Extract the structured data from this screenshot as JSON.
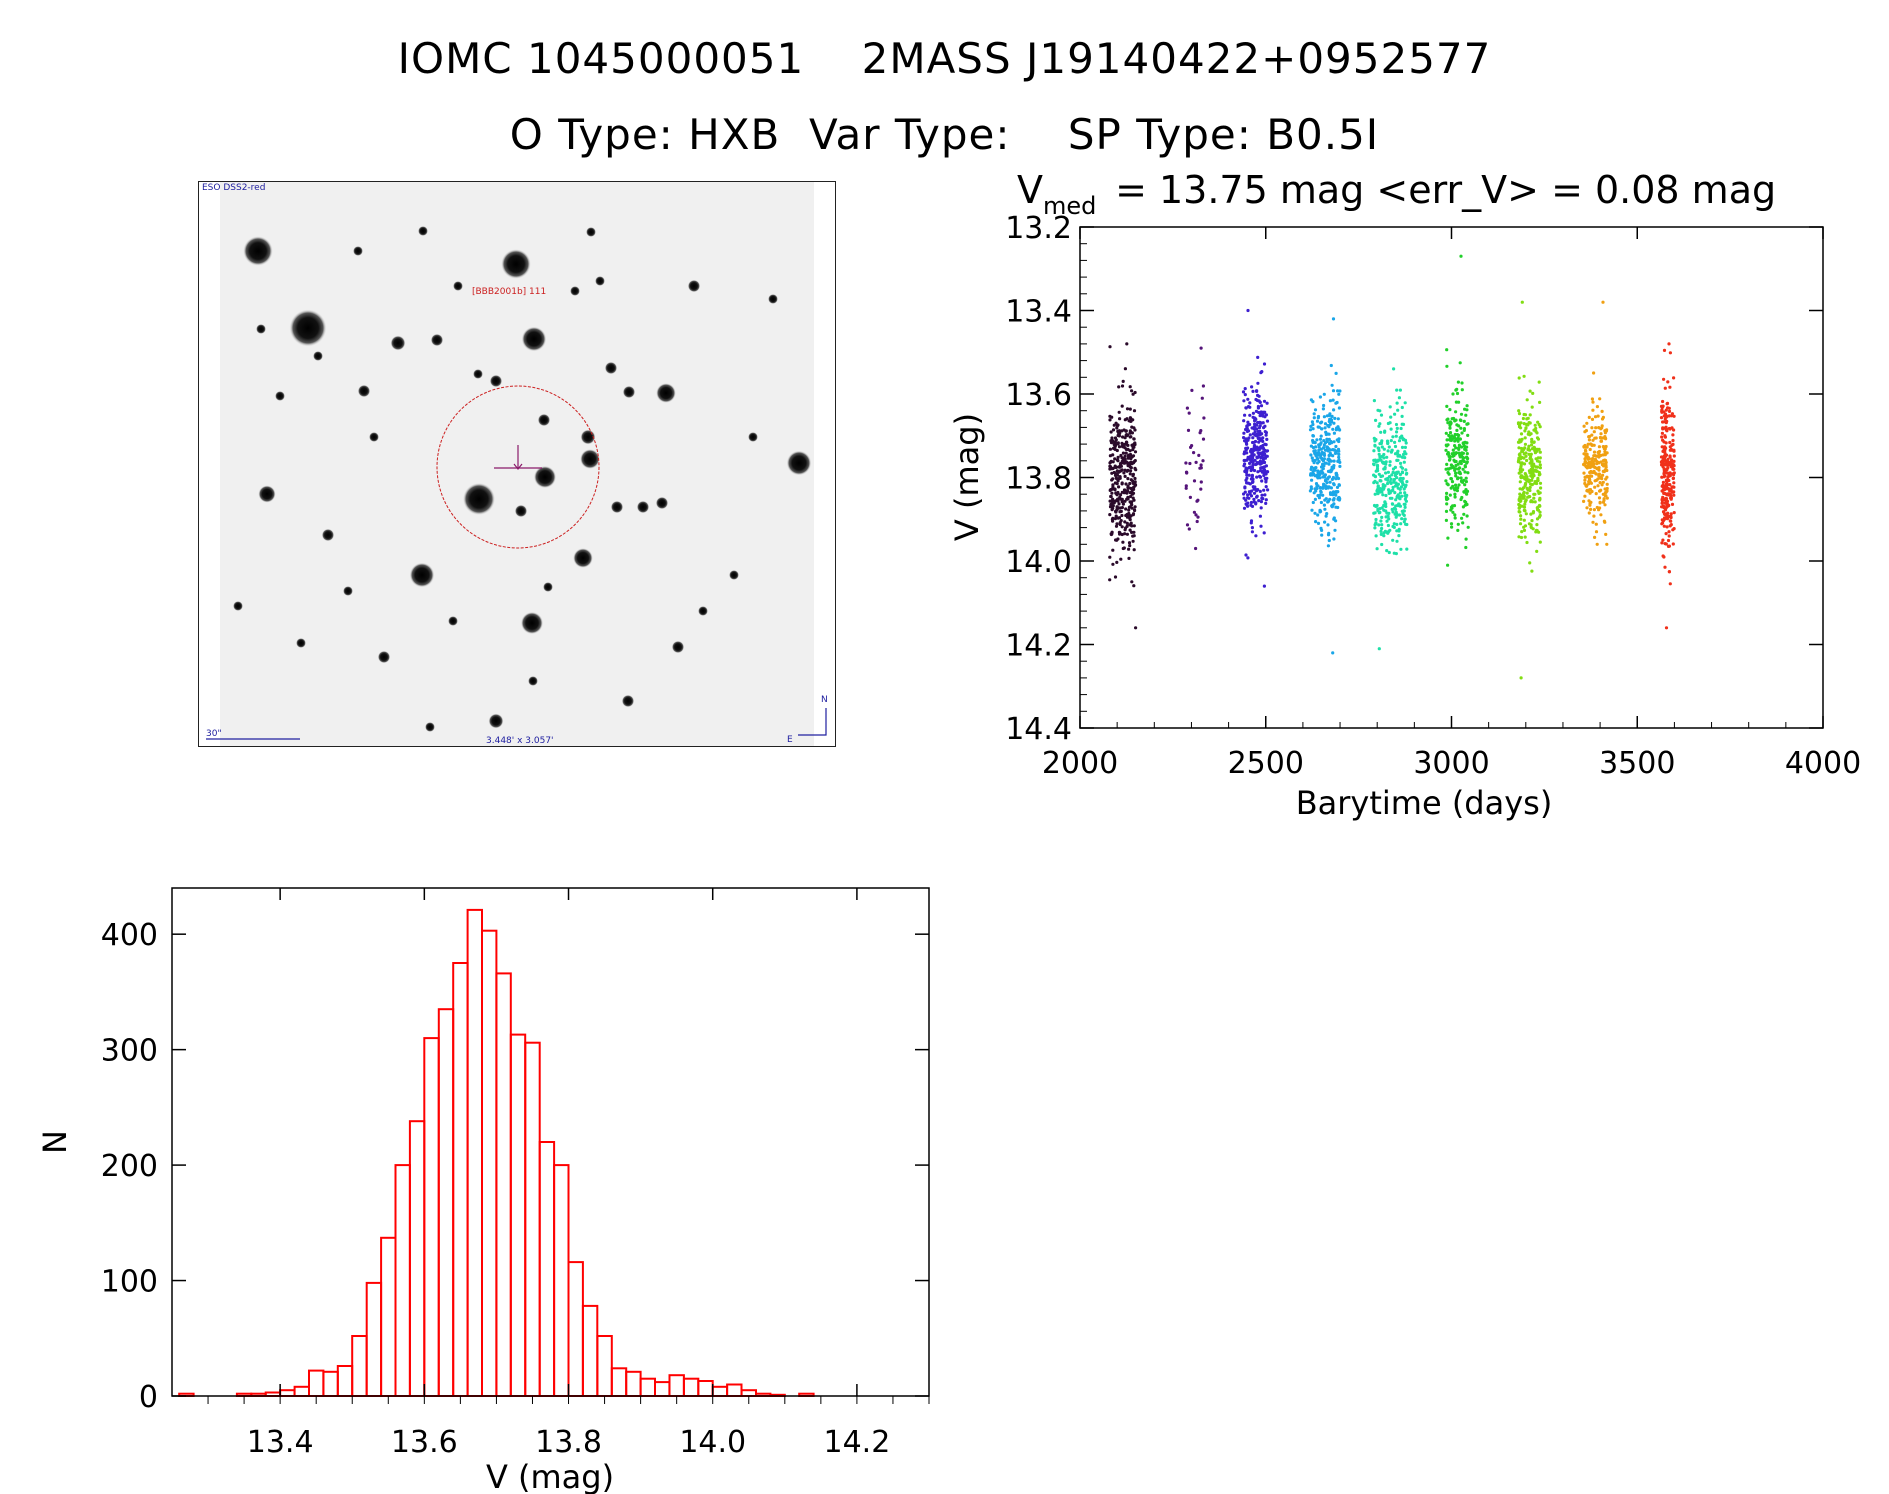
{
  "header": {
    "line1": "IOMC 1045000051    2MASS J19140422+0952577",
    "line2": "O Type: HXB  Var Type:    SP Type: B0.5I"
  },
  "finder": {
    "survey_label": "ESO DSS2-red",
    "target_label": "[BBB2001b] 111",
    "scale_label": "30\"",
    "fov_label": "3.448' x 3.057'",
    "north_label": "N",
    "east_label": "E",
    "circle_color": "#cc2020",
    "text_blue": "#2020a0",
    "icons": [
      "crosshair-icon",
      "compass-icon"
    ]
  },
  "chart_data": [
    {
      "type": "scatter",
      "title_main": "V",
      "title_sub": "med",
      "title_rest": " = 13.75 mag <err_V> = 0.08 mag",
      "xlabel": "Barytime (days)",
      "ylabel": "V (mag)",
      "xlim": [
        2000,
        4000
      ],
      "ylim": [
        14.4,
        13.2
      ],
      "y_inverted": true,
      "xticks": [
        2000,
        2500,
        3000,
        3500,
        4000
      ],
      "yticks": [
        13.2,
        13.4,
        13.6,
        13.8,
        14.0,
        14.2,
        14.4
      ],
      "colormap": "rainbow by time",
      "clusters": [
        {
          "x_start": 2080,
          "x_end": 2150,
          "v_median": 13.8,
          "v_spread": 0.09,
          "v_min": 13.48,
          "v_max": 14.16,
          "color": "#2a0a2a",
          "n": 380
        },
        {
          "x_start": 2285,
          "x_end": 2335,
          "v_median": 13.76,
          "v_spread": 0.07,
          "v_min": 13.49,
          "v_max": 13.97,
          "color": "#55147a",
          "n": 40
        },
        {
          "x_start": 2440,
          "x_end": 2505,
          "v_median": 13.74,
          "v_spread": 0.08,
          "v_min": 13.4,
          "v_max": 14.06,
          "color": "#3d1fd0",
          "n": 330
        },
        {
          "x_start": 2620,
          "x_end": 2700,
          "v_median": 13.76,
          "v_spread": 0.08,
          "v_min": 13.42,
          "v_max": 14.22,
          "color": "#1aa6e8",
          "n": 330
        },
        {
          "x_start": 2790,
          "x_end": 2880,
          "v_median": 13.8,
          "v_spread": 0.08,
          "v_min": 13.54,
          "v_max": 14.21,
          "color": "#1ee0a8",
          "n": 330
        },
        {
          "x_start": 2985,
          "x_end": 3045,
          "v_median": 13.76,
          "v_spread": 0.08,
          "v_min": 13.27,
          "v_max": 14.01,
          "color": "#22d02a",
          "n": 230
        },
        {
          "x_start": 3180,
          "x_end": 3240,
          "v_median": 13.78,
          "v_spread": 0.09,
          "v_min": 13.38,
          "v_max": 14.28,
          "color": "#82dd12",
          "n": 280
        },
        {
          "x_start": 3355,
          "x_end": 3420,
          "v_median": 13.76,
          "v_spread": 0.07,
          "v_min": 13.38,
          "v_max": 13.96,
          "color": "#f0a012",
          "n": 240
        },
        {
          "x_start": 3565,
          "x_end": 3600,
          "v_median": 13.8,
          "v_spread": 0.09,
          "v_min": 13.48,
          "v_max": 14.16,
          "color": "#f0301a",
          "n": 260
        }
      ]
    },
    {
      "type": "bar",
      "style": "step-histogram",
      "xlabel": "V (mag)",
      "ylabel": "N",
      "xlim": [
        13.25,
        14.3
      ],
      "ylim": [
        0,
        440
      ],
      "xticks": [
        13.4,
        13.6,
        13.8,
        14.0,
        14.2
      ],
      "yticks": [
        0,
        100,
        200,
        300,
        400
      ],
      "bin_width": 0.02,
      "color": "#ff0000",
      "bins": [
        {
          "x0": 13.26,
          "n": 2
        },
        {
          "x0": 13.28,
          "n": 0
        },
        {
          "x0": 13.3,
          "n": 0
        },
        {
          "x0": 13.32,
          "n": 0
        },
        {
          "x0": 13.34,
          "n": 2
        },
        {
          "x0": 13.36,
          "n": 2
        },
        {
          "x0": 13.38,
          "n": 3
        },
        {
          "x0": 13.4,
          "n": 5
        },
        {
          "x0": 13.42,
          "n": 8
        },
        {
          "x0": 13.44,
          "n": 22
        },
        {
          "x0": 13.46,
          "n": 21
        },
        {
          "x0": 13.48,
          "n": 26
        },
        {
          "x0": 13.5,
          "n": 52
        },
        {
          "x0": 13.52,
          "n": 98
        },
        {
          "x0": 13.54,
          "n": 137
        },
        {
          "x0": 13.56,
          "n": 200
        },
        {
          "x0": 13.58,
          "n": 238
        },
        {
          "x0": 13.6,
          "n": 310
        },
        {
          "x0": 13.62,
          "n": 335
        },
        {
          "x0": 13.64,
          "n": 375
        },
        {
          "x0": 13.66,
          "n": 421
        },
        {
          "x0": 13.68,
          "n": 403
        },
        {
          "x0": 13.7,
          "n": 366
        },
        {
          "x0": 13.72,
          "n": 313
        },
        {
          "x0": 13.74,
          "n": 306
        },
        {
          "x0": 13.76,
          "n": 220
        },
        {
          "x0": 13.78,
          "n": 200
        },
        {
          "x0": 13.8,
          "n": 116
        },
        {
          "x0": 13.82,
          "n": 78
        },
        {
          "x0": 13.84,
          "n": 52
        },
        {
          "x0": 13.86,
          "n": 24
        },
        {
          "x0": 13.88,
          "n": 21
        },
        {
          "x0": 13.9,
          "n": 15
        },
        {
          "x0": 13.92,
          "n": 12
        },
        {
          "x0": 13.94,
          "n": 18
        },
        {
          "x0": 13.96,
          "n": 15
        },
        {
          "x0": 13.98,
          "n": 13
        },
        {
          "x0": 14.0,
          "n": 8
        },
        {
          "x0": 14.02,
          "n": 10
        },
        {
          "x0": 14.04,
          "n": 5
        },
        {
          "x0": 14.06,
          "n": 2
        },
        {
          "x0": 14.08,
          "n": 1
        },
        {
          "x0": 14.1,
          "n": 0
        },
        {
          "x0": 14.12,
          "n": 2
        }
      ]
    }
  ]
}
